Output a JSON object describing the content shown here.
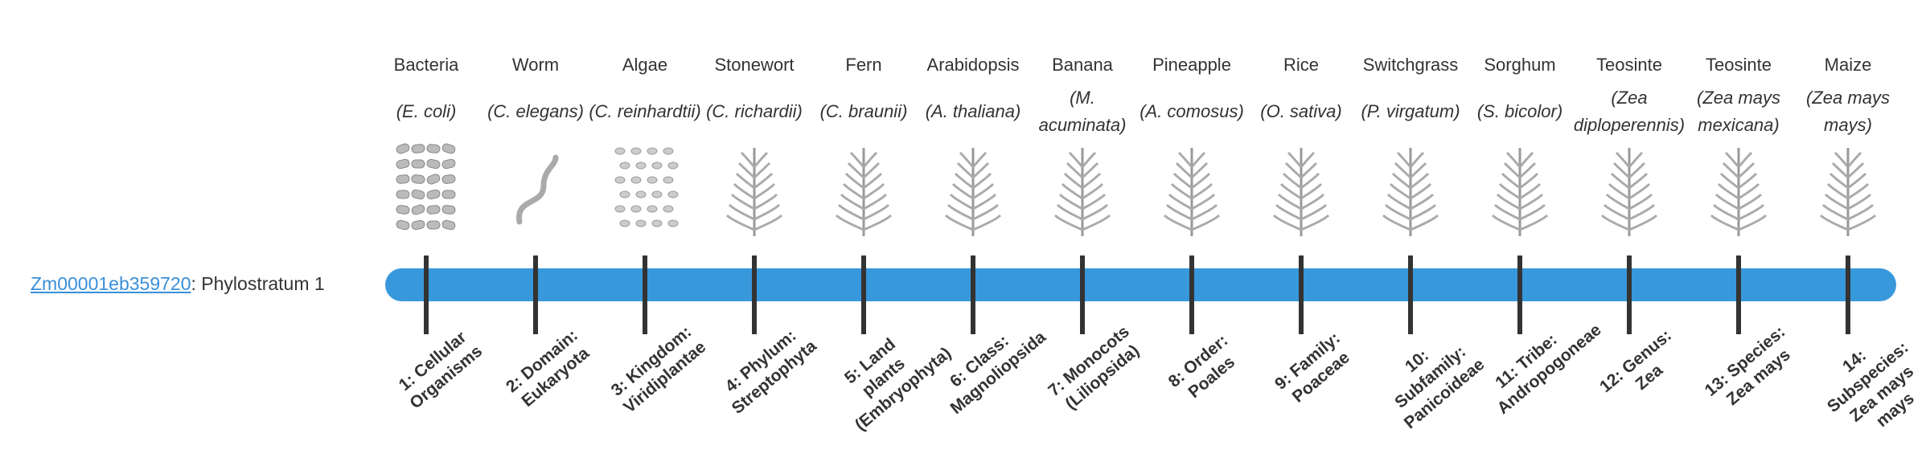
{
  "gene": {
    "id": "Zm00001eb359720",
    "suffix": ": Phylostratum 1"
  },
  "organisms": [
    {
      "name": "Bacteria",
      "species": "(E. coli)",
      "stage": "1: Cellular Organisms"
    },
    {
      "name": "Worm",
      "species": "(C. elegans)",
      "stage": "2: Domain: Eukaryota"
    },
    {
      "name": "Algae",
      "species": "(C. reinhardtii)",
      "stage": "3: Kingdom: Viridiplantae"
    },
    {
      "name": "Stonewort",
      "species": "(C. richardii)",
      "stage": "4: Phylum: Streptophyta"
    },
    {
      "name": "Fern",
      "species": "(C. braunii)",
      "stage": "5: Land plants (Embryophyta)"
    },
    {
      "name": "Arabidopsis",
      "species": "(A. thaliana)",
      "stage": "6: Class: Magnoliopsida"
    },
    {
      "name": "Banana",
      "species": "(M. acuminata)",
      "stage": "7: Monocots (Liliopsida)"
    },
    {
      "name": "Pineapple",
      "species": "(A. comosus)",
      "stage": "8: Order: Poales"
    },
    {
      "name": "Rice",
      "species": "(O. sativa)",
      "stage": "9: Family: Poaceae"
    },
    {
      "name": "Switchgrass",
      "species": "(P. virgatum)",
      "stage": "10: Subfamily: Panicoideae"
    },
    {
      "name": "Sorghum",
      "species": "(S. bicolor)",
      "stage": "11: Tribe: Andropogoneae"
    },
    {
      "name": "Teosinte",
      "species": "(Zea diploperennis)",
      "stage": "12: Genus: Zea"
    },
    {
      "name": "Teosinte",
      "species": "(Zea mays mexicana)",
      "stage": "13: Species: Zea mays"
    },
    {
      "name": "Maize",
      "species": "(Zea mays mays)",
      "stage": "14: Subspecies: Zea mays mays"
    }
  ]
}
